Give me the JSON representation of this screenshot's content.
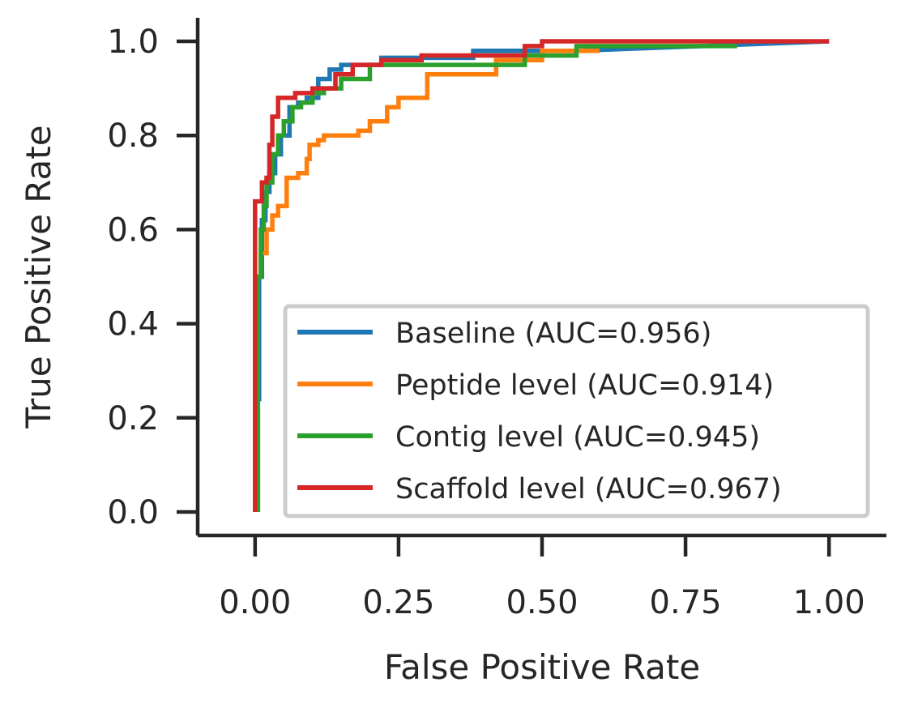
{
  "chart_data": {
    "type": "line",
    "xlabel": "False Positive Rate",
    "ylabel": "True Positive Rate",
    "xlim": [
      -0.1,
      1.1
    ],
    "ylim": [
      -0.05,
      1.05
    ],
    "xticks": [
      "0.00",
      "0.25",
      "0.50",
      "0.75",
      "1.00"
    ],
    "xtick_values": [
      0,
      0.25,
      0.5,
      0.75,
      1.0
    ],
    "yticks": [
      "0.0",
      "0.2",
      "0.4",
      "0.6",
      "0.8",
      "1.0"
    ],
    "ytick_values": [
      0,
      0.2,
      0.4,
      0.6,
      0.8,
      1.0
    ],
    "grid": false,
    "legend_position": "lower-right",
    "series": [
      {
        "name": "Baseline (AUC=0.956)",
        "color": "#1f77b4",
        "x": [
          0.003,
          0.003,
          0.007,
          0.007,
          0.012,
          0.012,
          0.018,
          0.018,
          0.025,
          0.025,
          0.035,
          0.035,
          0.045,
          0.045,
          0.06,
          0.06,
          0.075,
          0.075,
          0.09,
          0.09,
          0.11,
          0.11,
          0.13,
          0.13,
          0.15,
          0.15,
          0.22,
          0.22,
          0.38,
          0.38,
          0.56,
          1.0
        ],
        "y": [
          0.0,
          0.24,
          0.24,
          0.5,
          0.5,
          0.62,
          0.62,
          0.68,
          0.68,
          0.72,
          0.72,
          0.76,
          0.76,
          0.8,
          0.8,
          0.86,
          0.86,
          0.87,
          0.87,
          0.88,
          0.88,
          0.92,
          0.92,
          0.94,
          0.94,
          0.95,
          0.95,
          0.965,
          0.965,
          0.98,
          0.98,
          1.0
        ]
      },
      {
        "name": "Peptide level (AUC=0.914)",
        "color": "#ff7f0e",
        "x": [
          0.003,
          0.003,
          0.01,
          0.01,
          0.02,
          0.02,
          0.03,
          0.03,
          0.04,
          0.04,
          0.055,
          0.055,
          0.075,
          0.075,
          0.09,
          0.09,
          0.095,
          0.095,
          0.11,
          0.11,
          0.12,
          0.12,
          0.18,
          0.18,
          0.2,
          0.2,
          0.23,
          0.23,
          0.25,
          0.25,
          0.3,
          0.3,
          0.42,
          0.42,
          0.5,
          0.5,
          0.6
        ],
        "y": [
          0.0,
          0.5,
          0.5,
          0.55,
          0.55,
          0.6,
          0.6,
          0.63,
          0.63,
          0.65,
          0.65,
          0.71,
          0.71,
          0.72,
          0.72,
          0.75,
          0.75,
          0.78,
          0.78,
          0.79,
          0.79,
          0.8,
          0.8,
          0.81,
          0.81,
          0.83,
          0.83,
          0.86,
          0.86,
          0.88,
          0.88,
          0.93,
          0.93,
          0.96,
          0.96,
          0.98,
          0.98
        ]
      },
      {
        "name": "Contig level (AUC=0.945)",
        "color": "#2ca02c",
        "x": [
          0.005,
          0.005,
          0.01,
          0.01,
          0.015,
          0.015,
          0.02,
          0.02,
          0.03,
          0.03,
          0.04,
          0.04,
          0.05,
          0.05,
          0.065,
          0.065,
          0.08,
          0.08,
          0.1,
          0.1,
          0.12,
          0.12,
          0.15,
          0.15,
          0.2,
          0.2,
          0.47,
          0.47,
          0.56,
          0.56,
          0.84
        ],
        "y": [
          0.0,
          0.5,
          0.5,
          0.6,
          0.6,
          0.65,
          0.65,
          0.7,
          0.7,
          0.76,
          0.76,
          0.8,
          0.8,
          0.83,
          0.83,
          0.86,
          0.86,
          0.87,
          0.87,
          0.89,
          0.89,
          0.9,
          0.9,
          0.92,
          0.92,
          0.95,
          0.95,
          0.97,
          0.97,
          0.99,
          0.99
        ]
      },
      {
        "name": "Scaffold level (AUC=0.967)",
        "color": "#d62728",
        "x": [
          0.0,
          0.0,
          0.012,
          0.012,
          0.02,
          0.02,
          0.025,
          0.025,
          0.03,
          0.03,
          0.04,
          0.04,
          0.07,
          0.07,
          0.1,
          0.1,
          0.14,
          0.14,
          0.17,
          0.17,
          0.22,
          0.22,
          0.29,
          0.29,
          0.47,
          0.47,
          0.5,
          0.5,
          1.0
        ],
        "y": [
          0.0,
          0.66,
          0.66,
          0.7,
          0.7,
          0.71,
          0.71,
          0.78,
          0.78,
          0.84,
          0.84,
          0.88,
          0.88,
          0.89,
          0.89,
          0.9,
          0.9,
          0.93,
          0.93,
          0.95,
          0.95,
          0.96,
          0.96,
          0.97,
          0.97,
          0.99,
          0.99,
          1.0,
          1.0
        ]
      }
    ]
  }
}
